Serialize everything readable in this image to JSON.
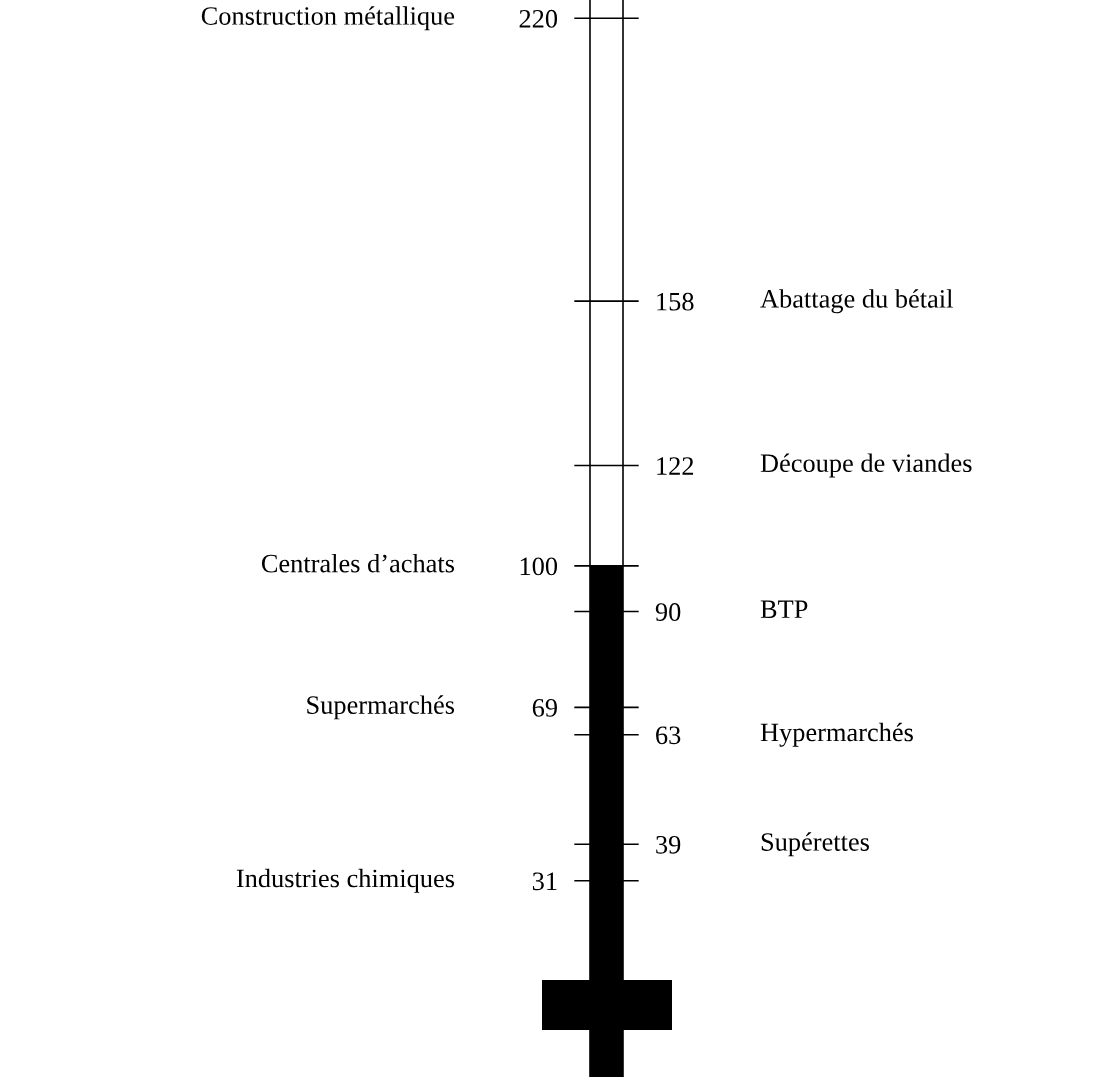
{
  "chart_data": {
    "type": "bar",
    "categories": [
      null
    ],
    "values": [
      100
    ],
    "color": "#000000",
    "ylim": [
      -12,
      224
    ],
    "yticks": [
      220,
      100,
      69,
      31
    ],
    "y2lim": [
      -12,
      224
    ],
    "y2ticks": [
      158,
      122,
      90,
      63,
      39
    ],
    "ref_lines": [
      {
        "axis": "y",
        "value": 220,
        "color": "#000000"
      },
      {
        "axis": "y2",
        "value": 158,
        "color": "#000000"
      },
      {
        "axis": "y2",
        "value": 122,
        "color": "#000000"
      },
      {
        "axis": "y",
        "value": 100,
        "color": "#000000"
      },
      {
        "axis": "y2",
        "value": 90,
        "color": "#000000"
      },
      {
        "axis": "y",
        "value": 69,
        "color": "#000000"
      },
      {
        "axis": "y2",
        "value": 63,
        "color": "#000000"
      },
      {
        "axis": "y2",
        "value": 39,
        "color": "#000000"
      },
      {
        "axis": "y",
        "value": 31,
        "color": "#000000"
      }
    ],
    "annotations": [
      "Construction métallique",
      "Abattage du bétail",
      "Découpe de viandes",
      "Centrales d’achats",
      "BTP",
      "Supermarchés",
      "Hypermarchés",
      "Supérettes",
      "Industries chimiques"
    ]
  }
}
